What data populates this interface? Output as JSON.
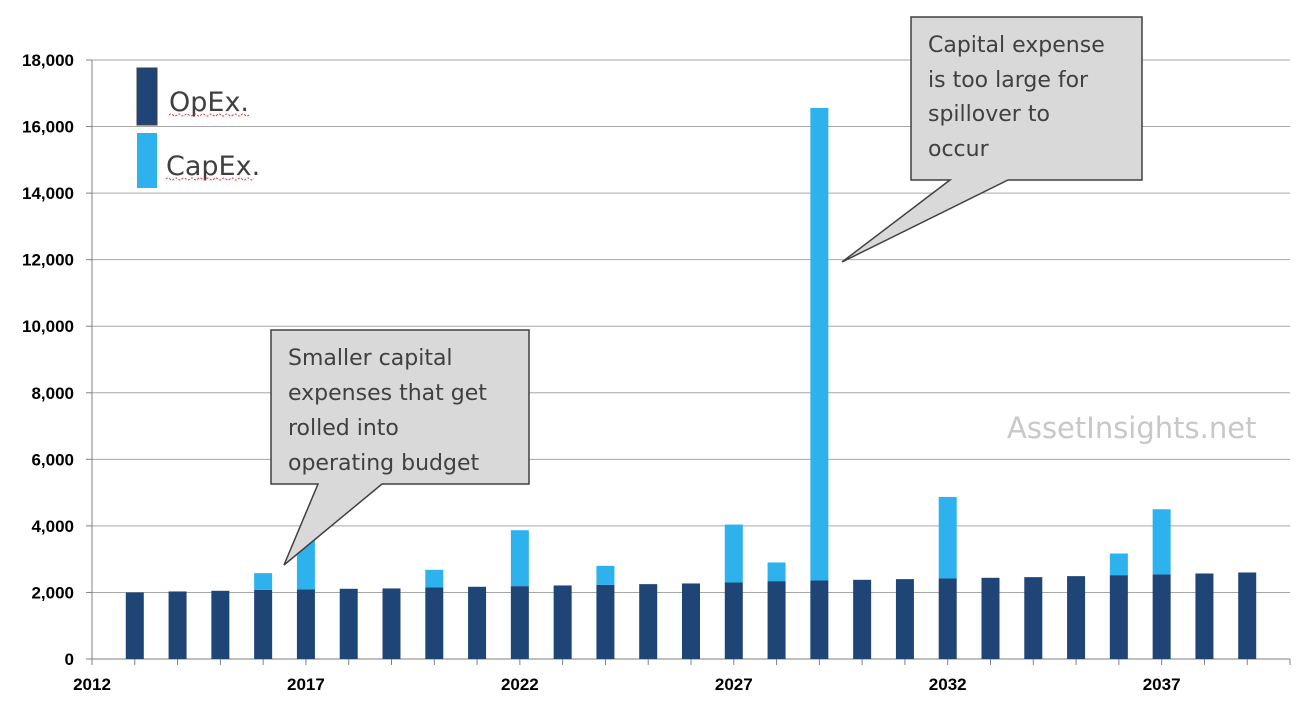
{
  "colors": {
    "opex": "#1f4576",
    "capex": "#2db2ee",
    "grid": "#a6a6a6",
    "callout_fill": "#d9d9d9",
    "callout_stroke": "#404040"
  },
  "chart_data": {
    "type": "bar",
    "stacked": true,
    "x": [
      2013,
      2014,
      2015,
      2016,
      2017,
      2018,
      2019,
      2020,
      2021,
      2022,
      2023,
      2024,
      2025,
      2026,
      2027,
      2028,
      2029,
      2030,
      2031,
      2032,
      2033,
      2034,
      2035,
      2036,
      2037,
      2038,
      2039
    ],
    "series": [
      {
        "name": "OpEx.",
        "color": "#1f4576",
        "values": [
          2000,
          2030,
          2050,
          2080,
          2090,
          2110,
          2120,
          2150,
          2170,
          2190,
          2210,
          2230,
          2250,
          2270,
          2300,
          2340,
          2360,
          2380,
          2400,
          2420,
          2440,
          2460,
          2490,
          2520,
          2540,
          2570,
          2600
        ]
      },
      {
        "name": "CapEx.",
        "color": "#2db2ee",
        "values": [
          0,
          0,
          0,
          500,
          1580,
          0,
          0,
          530,
          0,
          1680,
          0,
          570,
          0,
          0,
          1740,
          560,
          14200,
          0,
          0,
          2450,
          0,
          0,
          0,
          650,
          1960,
          0,
          0
        ]
      }
    ],
    "y_ticks": [
      "0",
      "2,000",
      "4,000",
      "6,000",
      "8,000",
      "10,000",
      "12,000",
      "14,000",
      "16,000",
      "18,000"
    ],
    "x_ticks": [
      "2012",
      "2017",
      "2022",
      "2027",
      "2032",
      "2037"
    ],
    "ylim": [
      0,
      18000
    ],
    "xlim": [
      2012,
      2040
    ],
    "grid": true,
    "legend_position": "top-left",
    "legend": [
      "OpEx.",
      "CapEx."
    ],
    "annotations": [
      {
        "lines": [
          "Smaller capital",
          "expenses that get",
          "rolled into",
          "operating budget"
        ],
        "points_to_year": 2016
      },
      {
        "lines": [
          "Capital expense",
          "is too large for",
          "spillover to",
          "occur"
        ],
        "points_to_year": 2029
      }
    ],
    "watermark": "AssetInsights.net"
  }
}
